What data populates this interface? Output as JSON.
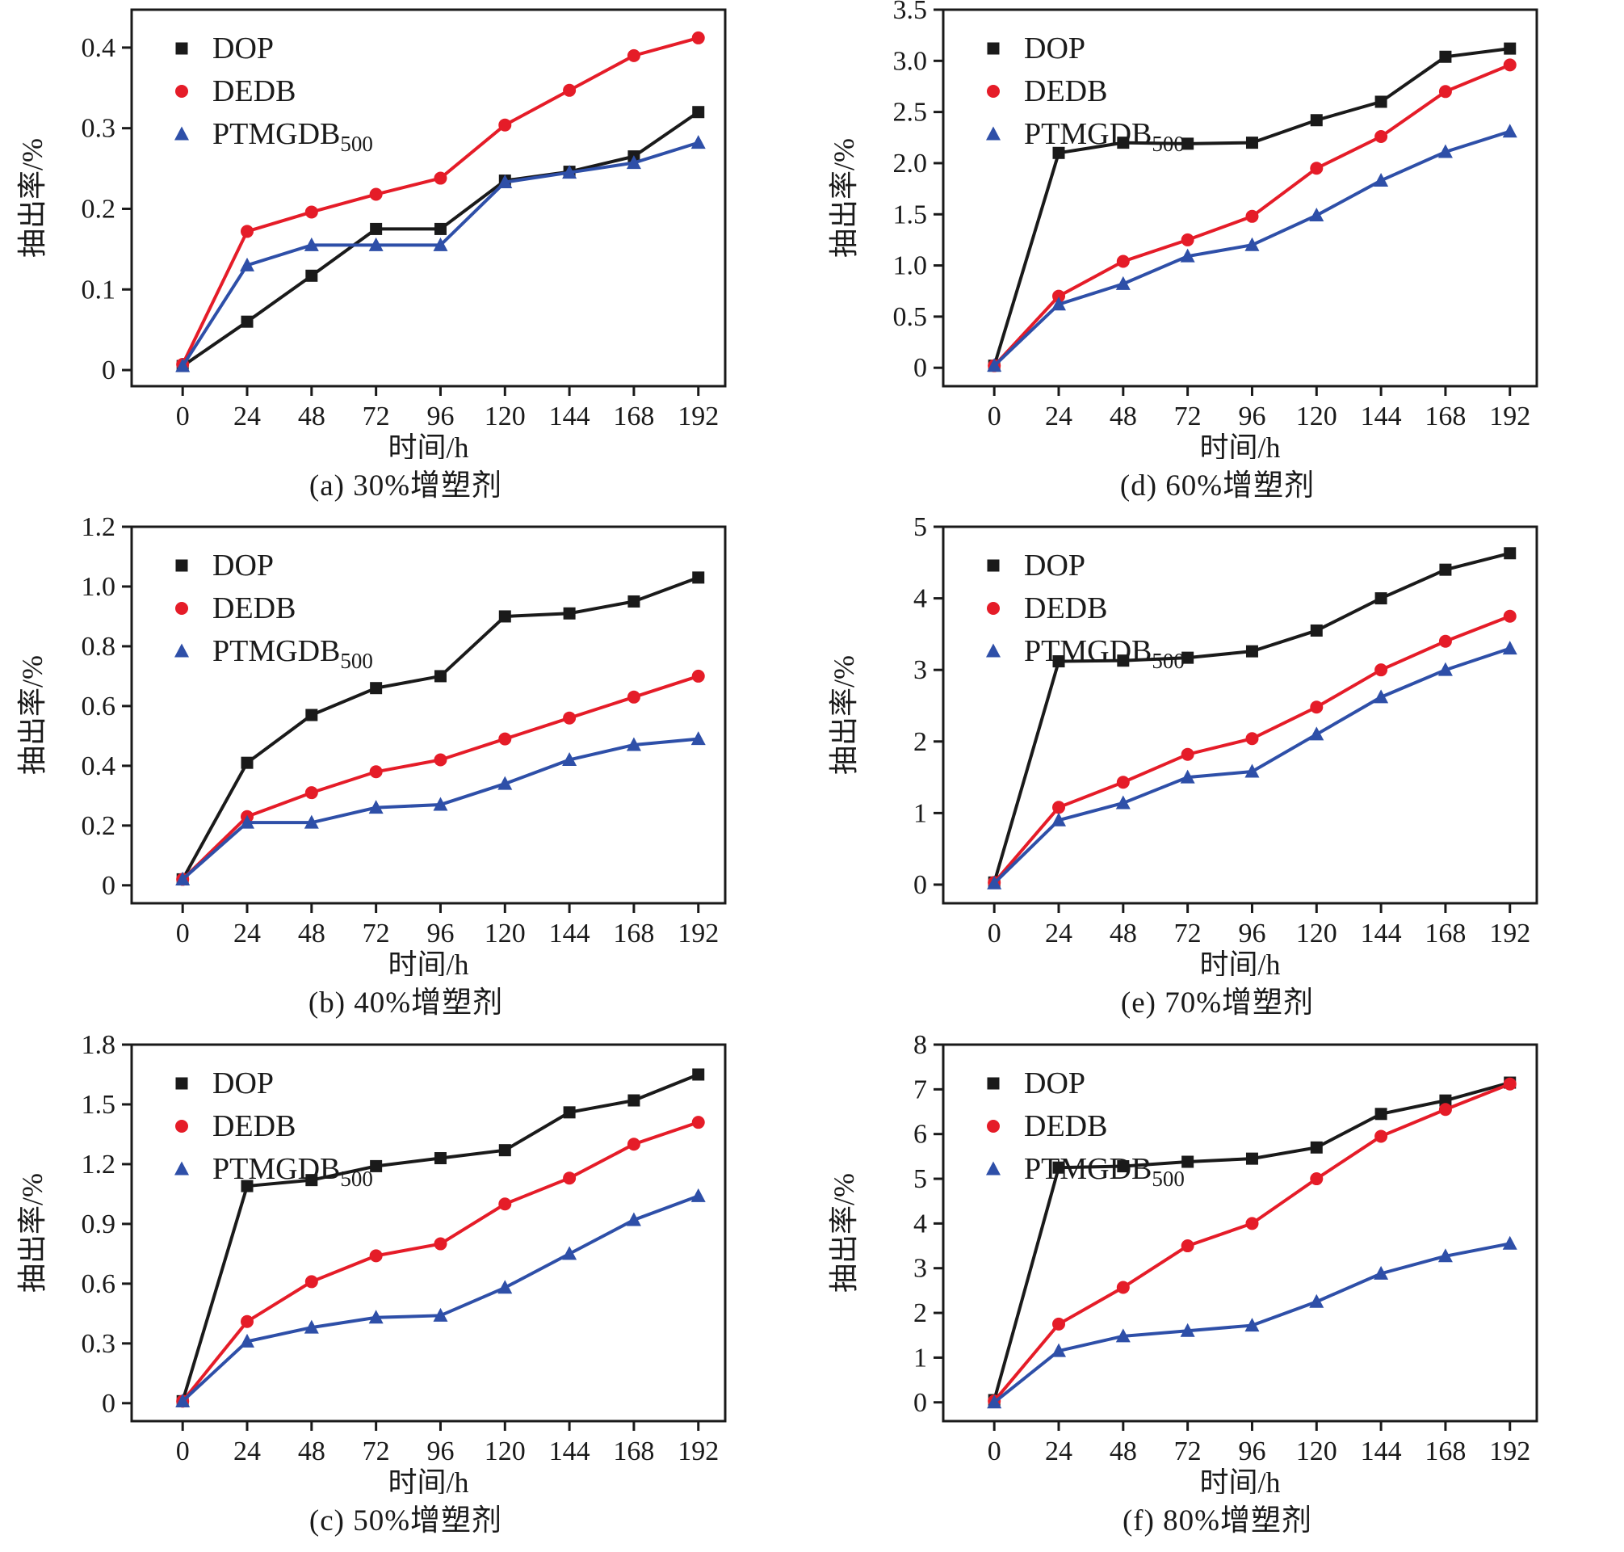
{
  "figure": {
    "description": "Six line charts comparing plasticizer extraction rate over time",
    "background": "#ffffff",
    "frame_color": "#1a1a1a"
  },
  "colors": {
    "DOP": "#1a1a1a",
    "DEDB": "#e51c28",
    "PTMGDB500": "#2e4fa8"
  },
  "legend": {
    "position": "upper-left-inside",
    "entries": [
      {
        "series": "DOP",
        "label": "DOP",
        "label_sub": "",
        "marker": "square"
      },
      {
        "series": "DEDB",
        "label": "DEDB",
        "label_sub": "",
        "marker": "circle"
      },
      {
        "series": "PTMGDB500",
        "label": "PTMGDB",
        "label_sub": "500",
        "marker": "triangle"
      }
    ]
  },
  "axes": {
    "x_label": "时间/h",
    "y_label": "抽出率/%",
    "x_ticks": [
      0,
      24,
      48,
      72,
      96,
      120,
      144,
      168,
      192
    ],
    "x_range": [
      -19,
      202
    ],
    "grid": "off"
  },
  "chart_data": [
    {
      "id": "a",
      "type": "line",
      "caption": "(a)  30%增塑剂",
      "xlabel": "时间/h",
      "ylabel": "抽出率/%",
      "x": [
        0,
        24,
        48,
        72,
        96,
        120,
        144,
        168,
        192
      ],
      "ylim": [
        -0.02,
        0.447
      ],
      "yticks": [
        0,
        0.1,
        0.2,
        0.3,
        0.4
      ],
      "ytick_labels": [
        "0",
        "0.1",
        "0.2",
        "0.3",
        "0.4"
      ],
      "series": [
        {
          "name": "DOP",
          "values": [
            0.005,
            0.06,
            0.117,
            0.175,
            0.175,
            0.235,
            0.246,
            0.265,
            0.32
          ]
        },
        {
          "name": "DEDB",
          "values": [
            0.007,
            0.172,
            0.196,
            0.218,
            0.238,
            0.304,
            0.347,
            0.39,
            0.412
          ]
        },
        {
          "name": "PTMGDB500",
          "values": [
            0.005,
            0.13,
            0.155,
            0.155,
            0.155,
            0.233,
            0.245,
            0.257,
            0.282
          ]
        }
      ]
    },
    {
      "id": "b",
      "type": "line",
      "caption": "(b) 40%增塑剂",
      "xlabel": "时间/h",
      "ylabel": "抽出率/%",
      "x": [
        0,
        24,
        48,
        72,
        96,
        120,
        144,
        168,
        192
      ],
      "ylim": [
        -0.06,
        1.2
      ],
      "yticks": [
        0,
        0.2,
        0.4,
        0.6,
        0.8,
        1.0,
        1.2
      ],
      "ytick_labels": [
        "0",
        "0.2",
        "0.4",
        "0.6",
        "0.8",
        "1.0",
        "1.2"
      ],
      "series": [
        {
          "name": "DOP",
          "values": [
            0.02,
            0.41,
            0.57,
            0.66,
            0.7,
            0.9,
            0.91,
            0.95,
            1.03
          ]
        },
        {
          "name": "DEDB",
          "values": [
            0.02,
            0.23,
            0.31,
            0.38,
            0.42,
            0.49,
            0.56,
            0.63,
            0.7
          ]
        },
        {
          "name": "PTMGDB500",
          "values": [
            0.02,
            0.21,
            0.21,
            0.26,
            0.27,
            0.34,
            0.42,
            0.47,
            0.49
          ]
        }
      ]
    },
    {
      "id": "c",
      "type": "line",
      "caption": "(c) 50%增塑剂",
      "xlabel": "时间/h",
      "ylabel": "抽出率/%",
      "x": [
        0,
        24,
        48,
        72,
        96,
        120,
        144,
        168,
        192
      ],
      "ylim": [
        -0.09,
        1.8
      ],
      "yticks": [
        0,
        0.3,
        0.6,
        0.9,
        1.2,
        1.5,
        1.8
      ],
      "ytick_labels": [
        "0",
        "0.3",
        "0.6",
        "0.9",
        "1.2",
        "1.5",
        "1.8"
      ],
      "series": [
        {
          "name": "DOP",
          "values": [
            0.01,
            1.09,
            1.12,
            1.19,
            1.23,
            1.27,
            1.46,
            1.52,
            1.65
          ]
        },
        {
          "name": "DEDB",
          "values": [
            0.01,
            0.41,
            0.61,
            0.74,
            0.8,
            1.0,
            1.13,
            1.3,
            1.41
          ]
        },
        {
          "name": "PTMGDB500",
          "values": [
            0.01,
            0.31,
            0.38,
            0.43,
            0.44,
            0.58,
            0.75,
            0.92,
            1.04
          ]
        }
      ]
    },
    {
      "id": "d",
      "type": "line",
      "caption": "(d)  60%增塑剂",
      "xlabel": "时间/h",
      "ylabel": "抽出率/%",
      "x": [
        0,
        24,
        48,
        72,
        96,
        120,
        144,
        168,
        192
      ],
      "ylim": [
        -0.18,
        3.5
      ],
      "yticks": [
        0,
        0.5,
        1.0,
        1.5,
        2.0,
        2.5,
        3.0,
        3.5
      ],
      "ytick_labels": [
        "0",
        "0.5",
        "1.0",
        "1.5",
        "2.0",
        "2.5",
        "3.0",
        "3.5"
      ],
      "series": [
        {
          "name": "DOP",
          "values": [
            0.02,
            2.1,
            2.2,
            2.19,
            2.2,
            2.42,
            2.6,
            3.04,
            3.12
          ]
        },
        {
          "name": "DEDB",
          "values": [
            0.02,
            0.7,
            1.04,
            1.25,
            1.48,
            1.95,
            2.26,
            2.7,
            2.96
          ]
        },
        {
          "name": "PTMGDB500",
          "values": [
            0.02,
            0.62,
            0.82,
            1.09,
            1.2,
            1.49,
            1.83,
            2.11,
            2.31
          ]
        }
      ]
    },
    {
      "id": "e",
      "type": "line",
      "caption": "(e) 70%增塑剂",
      "xlabel": "时间/h",
      "ylabel": "抽出率/%",
      "x": [
        0,
        24,
        48,
        72,
        96,
        120,
        144,
        168,
        192
      ],
      "ylim": [
        -0.26,
        5
      ],
      "yticks": [
        0,
        1,
        2,
        3,
        4,
        5
      ],
      "ytick_labels": [
        "0",
        "1",
        "2",
        "3",
        "4",
        "5"
      ],
      "series": [
        {
          "name": "DOP",
          "values": [
            0.03,
            3.12,
            3.13,
            3.17,
            3.26,
            3.55,
            4.0,
            4.4,
            4.63
          ]
        },
        {
          "name": "DEDB",
          "values": [
            0.03,
            1.08,
            1.43,
            1.82,
            2.04,
            2.48,
            3.0,
            3.4,
            3.75
          ]
        },
        {
          "name": "PTMGDB500",
          "values": [
            0.02,
            0.9,
            1.14,
            1.5,
            1.58,
            2.1,
            2.62,
            3.0,
            3.3
          ]
        }
      ]
    },
    {
      "id": "f",
      "type": "line",
      "caption": "(f)  80%增塑剂",
      "xlabel": "时间/h",
      "ylabel": "抽出率/%",
      "x": [
        0,
        24,
        48,
        72,
        96,
        120,
        144,
        168,
        192
      ],
      "ylim": [
        -0.42,
        8
      ],
      "yticks": [
        0,
        1,
        2,
        3,
        4,
        5,
        6,
        7,
        8
      ],
      "ytick_labels": [
        "0",
        "1",
        "2",
        "3",
        "4",
        "5",
        "6",
        "7",
        "8"
      ],
      "series": [
        {
          "name": "DOP",
          "values": [
            0.05,
            5.25,
            5.28,
            5.38,
            5.45,
            5.7,
            6.45,
            6.75,
            7.15
          ]
        },
        {
          "name": "DEDB",
          "values": [
            0.03,
            1.75,
            2.57,
            3.5,
            4.0,
            5.0,
            5.95,
            6.55,
            7.12
          ]
        },
        {
          "name": "PTMGDB500",
          "values": [
            0.0,
            1.15,
            1.48,
            1.6,
            1.72,
            2.25,
            2.88,
            3.27,
            3.55
          ]
        }
      ]
    }
  ]
}
